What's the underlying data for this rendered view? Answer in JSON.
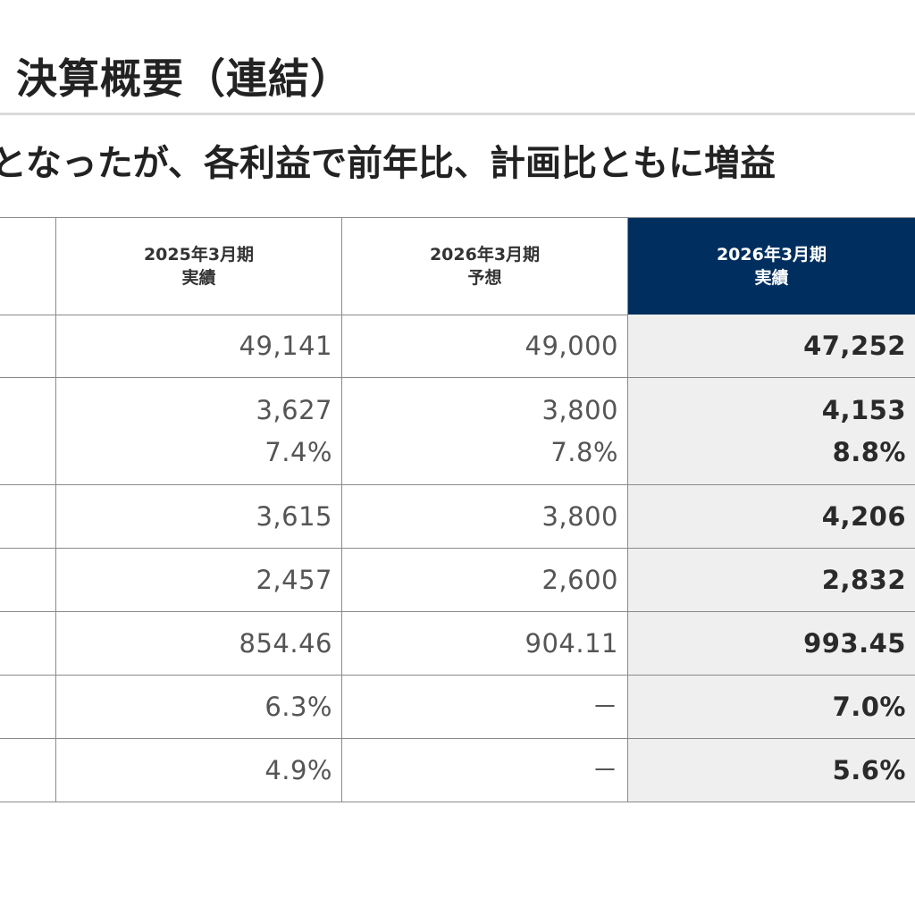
{
  "title": "決算概要（連結）",
  "subtitle": "となったが、各利益で前年比、計画比ともに増益",
  "columns": [
    {
      "line1": "2025年3月期",
      "line2": "実績"
    },
    {
      "line1": "2026年3月期",
      "line2": "予想"
    },
    {
      "line1": "2026年3月期",
      "line2": "実績"
    }
  ],
  "rows": [
    {
      "prev": [
        "49,141"
      ],
      "forecast": [
        "49,000"
      ],
      "actual": [
        "47,252"
      ]
    },
    {
      "prev": [
        "3,627",
        "7.4%"
      ],
      "forecast": [
        "3,800",
        "7.8%"
      ],
      "actual": [
        "4,153",
        "8.8%"
      ]
    },
    {
      "prev": [
        "3,615"
      ],
      "forecast": [
        "3,800"
      ],
      "actual": [
        "4,206"
      ]
    },
    {
      "prev": [
        "2,457"
      ],
      "forecast": [
        "2,600"
      ],
      "actual": [
        "2,832"
      ]
    },
    {
      "prev": [
        "854.46"
      ],
      "forecast": [
        "904.11"
      ],
      "actual": [
        "993.45"
      ]
    },
    {
      "prev": [
        "6.3%"
      ],
      "forecast": [
        "－"
      ],
      "actual": [
        "7.0%"
      ]
    },
    {
      "prev": [
        "4.9%"
      ],
      "forecast": [
        "－"
      ],
      "actual": [
        "5.6%"
      ]
    }
  ],
  "colors": {
    "highlight_header": "#002f5f",
    "highlight_column": "#efefef",
    "rule": "#d9d9d9"
  }
}
